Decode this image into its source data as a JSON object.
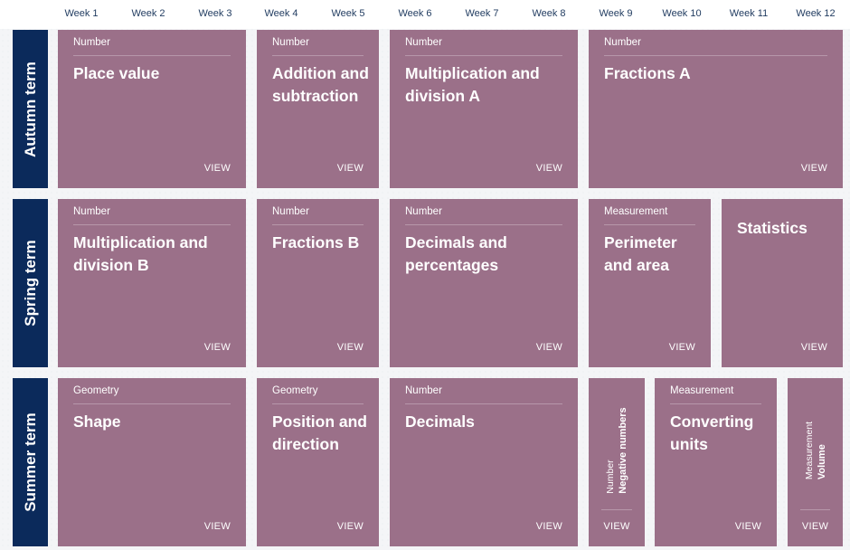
{
  "weeks": [
    "Week 1",
    "Week 2",
    "Week 3",
    "Week 4",
    "Week 5",
    "Week 6",
    "Week 7",
    "Week 8",
    "Week 9",
    "Week 10",
    "Week 11",
    "Week 12"
  ],
  "terms": {
    "autumn": "Autumn term",
    "spring": "Spring term",
    "summer": "Summer term"
  },
  "view_label": "VIEW",
  "autumn": [
    {
      "category": "Number",
      "title": "Place value"
    },
    {
      "category": "Number",
      "title": "Addition and subtraction"
    },
    {
      "category": "Number",
      "title": "Multiplication and division A"
    },
    {
      "category": "Number",
      "title": "Fractions A"
    }
  ],
  "spring": [
    {
      "category": "Number",
      "title": "Multiplication and division B"
    },
    {
      "category": "Number",
      "title": "Fractions B"
    },
    {
      "category": "Number",
      "title": "Decimals and percentages"
    },
    {
      "category": "Measurement",
      "title": "Perimeter and area"
    },
    {
      "category": "",
      "title": "Statistics"
    }
  ],
  "summer": [
    {
      "category": "Geometry",
      "title": "Shape"
    },
    {
      "category": "Geometry",
      "title": "Position and direction"
    },
    {
      "category": "Number",
      "title": "Decimals"
    },
    {
      "category": "Number",
      "title": "Negative numbers"
    },
    {
      "category": "Measurement",
      "title": "Converting units"
    },
    {
      "category": "Measurement",
      "title": "Volume"
    }
  ],
  "colors": {
    "card": "#9b7089",
    "term": "#0b2a5b",
    "week_text": "#1f3a5f",
    "background": "#f4f5f7"
  }
}
